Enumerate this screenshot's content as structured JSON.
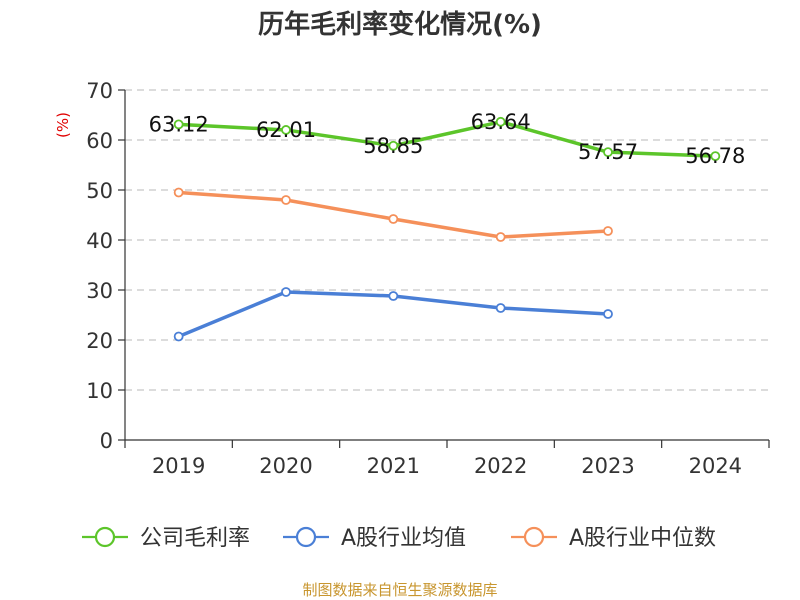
{
  "chart_data": {
    "type": "line",
    "title": "历年毛利率变化情况(%)",
    "ylabel": "(%)",
    "xlabel": "",
    "categories": [
      "2019",
      "2020",
      "2021",
      "2022",
      "2023",
      "2024"
    ],
    "ylim": [
      0,
      70
    ],
    "yticks": [
      0,
      10,
      20,
      30,
      40,
      50,
      60,
      70
    ],
    "grid": "horizontal-dashed",
    "legend_position": "bottom",
    "series": [
      {
        "name": "公司毛利率",
        "color": "#5cc52a",
        "values": [
          63.12,
          62.01,
          58.85,
          63.64,
          57.57,
          56.78
        ],
        "labels": [
          "63.12",
          "62.01",
          "58.85",
          "63.64",
          "57.57",
          "56.78"
        ]
      },
      {
        "name": "A股行业均值",
        "color": "#4a7fd6",
        "values": [
          20.7,
          29.6,
          28.8,
          26.4,
          25.2,
          null
        ]
      },
      {
        "name": "A股行业中位数",
        "color": "#f5905a",
        "values": [
          49.5,
          48.0,
          44.2,
          40.6,
          41.8,
          null
        ]
      }
    ]
  },
  "source": "制图数据来自恒生聚源数据库"
}
